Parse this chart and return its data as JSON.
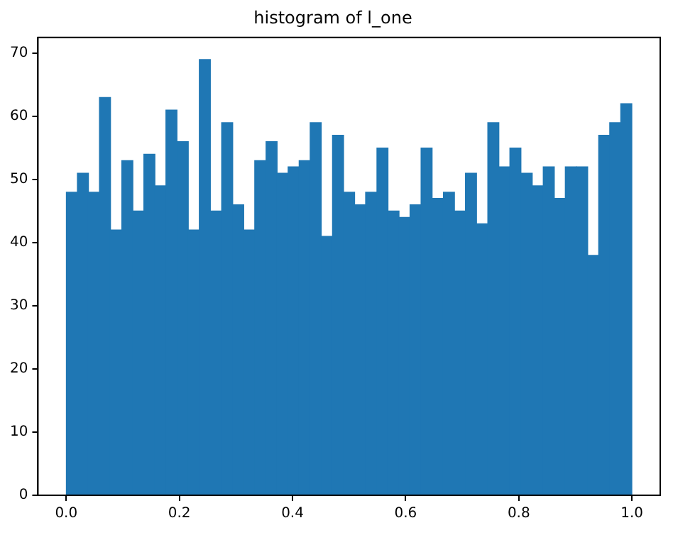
{
  "chart_data": {
    "type": "histogram",
    "title": "histogram of l_one",
    "bins": [
      0,
      0.02,
      0.039,
      0.059,
      0.078,
      0.098,
      0.118,
      0.137,
      0.157,
      0.176,
      0.196,
      0.216,
      0.235,
      0.255,
      0.275,
      0.294,
      0.314,
      0.333,
      0.353,
      0.373,
      0.392,
      0.412,
      0.431,
      0.451,
      0.471,
      0.49,
      0.51,
      0.529,
      0.549,
      0.569,
      0.588,
      0.608,
      0.627,
      0.647,
      0.667,
      0.686,
      0.706,
      0.725,
      0.745,
      0.765,
      0.784,
      0.804,
      0.824,
      0.843,
      0.863,
      0.882,
      0.902,
      0.922,
      0.941,
      0.961,
      0.98,
      1
    ],
    "values": [
      48,
      51,
      48,
      63,
      42,
      53,
      45,
      54,
      49,
      61,
      56,
      42,
      69,
      45,
      59,
      46,
      42,
      53,
      56,
      51,
      52,
      53,
      59,
      41,
      57,
      48,
      46,
      48,
      55,
      45,
      44,
      46,
      55,
      47,
      48,
      45,
      51,
      43,
      59,
      52,
      55,
      51,
      49,
      52,
      47,
      52,
      52,
      38,
      57,
      59,
      62
    ],
    "color": "#1f77b4",
    "xlim": [
      -0.05,
      1.05
    ],
    "xticks": [
      {
        "value": 0,
        "label": "0.0"
      },
      {
        "value": 0.2,
        "label": "0.2"
      },
      {
        "value": 0.4,
        "label": "0.4"
      },
      {
        "value": 0.6,
        "label": "0.6"
      },
      {
        "value": 0.8,
        "label": "0.8"
      },
      {
        "value": 1,
        "label": "1.0"
      }
    ],
    "ylim": [
      0,
      72.5
    ],
    "yticks": [
      0,
      10,
      20,
      30,
      40,
      50,
      60,
      70
    ],
    "grid": false,
    "legend": false
  }
}
